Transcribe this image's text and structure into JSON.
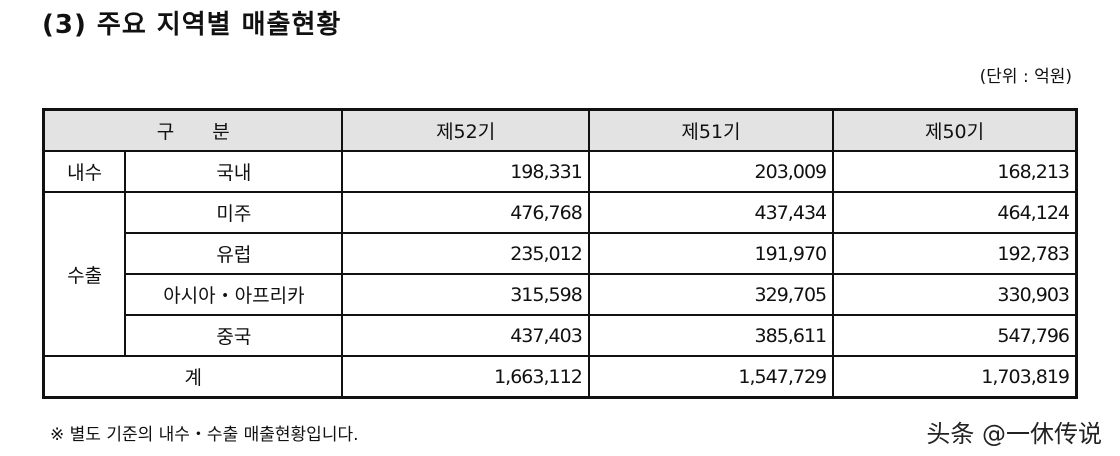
{
  "title": "(3) 주요 지역별 매출현황",
  "unit": "(단위 : 억원)",
  "table": {
    "header": {
      "category": "구　　분",
      "cols": [
        "제52기",
        "제51기",
        "제50기"
      ]
    },
    "groups": {
      "domestic": "내수",
      "export": "수출"
    },
    "rows": [
      {
        "label": "국내",
        "values": [
          "198,331",
          "203,009",
          "168,213"
        ]
      },
      {
        "label": "미주",
        "values": [
          "476,768",
          "437,434",
          "464,124"
        ]
      },
      {
        "label": "유럽",
        "values": [
          "235,012",
          "191,970",
          "192,783"
        ]
      },
      {
        "label": "아시아・아프리카",
        "values": [
          "315,598",
          "329,705",
          "330,903"
        ]
      },
      {
        "label": "중국",
        "values": [
          "437,403",
          "385,611",
          "547,796"
        ]
      }
    ],
    "total": {
      "label": "계",
      "values": [
        "1,663,112",
        "1,547,729",
        "1,703,819"
      ]
    }
  },
  "note": "※ 별도 기준의 내수・수출 매출현황입니다.",
  "watermark": "头条 @一休传说"
}
